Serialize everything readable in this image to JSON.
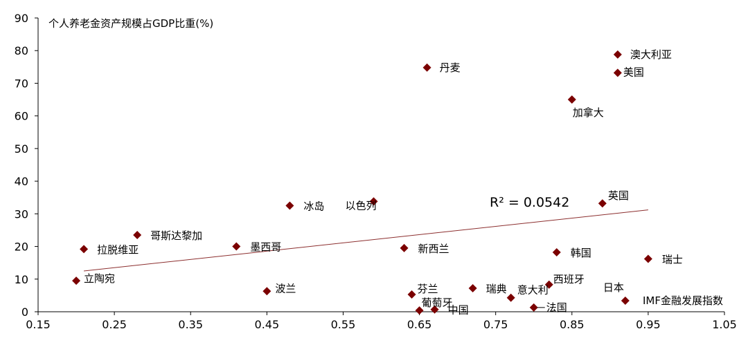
{
  "chart_data": {
    "type": "scatter",
    "title": "",
    "xlabel": "IMF金融发展指数",
    "ylabel": "个人养老金资产规模占GDP比重(%)",
    "xlim": [
      0.15,
      1.05
    ],
    "ylim": [
      0,
      90
    ],
    "x_ticks": [
      "0.15",
      "0.25",
      "0.35",
      "0.45",
      "0.55",
      "0.65",
      "0.75",
      "0.85",
      "0.95",
      "1.05"
    ],
    "y_ticks": [
      "0",
      "10",
      "20",
      "30",
      "40",
      "50",
      "60",
      "70",
      "80",
      "90"
    ],
    "grid": false,
    "marker_color": "#7b0000",
    "trendline_color": "#8b2d2d",
    "trendline": {
      "label": "R² = 0.0542",
      "x": [
        0.21,
        0.95
      ],
      "y": [
        12.5,
        31.2
      ]
    },
    "points": [
      {
        "name": "澳大利亚",
        "x": 0.91,
        "y": 78.8
      },
      {
        "name": "美国",
        "x": 0.91,
        "y": 73.2
      },
      {
        "name": "丹麦",
        "x": 0.66,
        "y": 74.8
      },
      {
        "name": "加拿大",
        "x": 0.85,
        "y": 65.0
      },
      {
        "name": "英国",
        "x": 0.89,
        "y": 33.2
      },
      {
        "name": "以色列",
        "x": 0.59,
        "y": 33.8
      },
      {
        "name": "冰岛",
        "x": 0.48,
        "y": 32.5
      },
      {
        "name": "哥斯达黎加",
        "x": 0.28,
        "y": 23.5
      },
      {
        "name": "墨西哥",
        "x": 0.41,
        "y": 20.0
      },
      {
        "name": "拉脱维亚",
        "x": 0.21,
        "y": 19.2
      },
      {
        "name": "新西兰",
        "x": 0.63,
        "y": 19.5
      },
      {
        "name": "韩国",
        "x": 0.83,
        "y": 18.2
      },
      {
        "name": "瑞士",
        "x": 0.95,
        "y": 16.2
      },
      {
        "name": "立陶宛",
        "x": 0.2,
        "y": 9.5
      },
      {
        "name": "西班牙",
        "x": 0.82,
        "y": 8.3
      },
      {
        "name": "瑞典",
        "x": 0.72,
        "y": 7.2
      },
      {
        "name": "波兰",
        "x": 0.45,
        "y": 6.3
      },
      {
        "name": "芬兰",
        "x": 0.64,
        "y": 5.3
      },
      {
        "name": "意大利",
        "x": 0.77,
        "y": 4.3
      },
      {
        "name": "日本",
        "x": 0.92,
        "y": 3.4
      },
      {
        "name": "葡萄牙",
        "x": 0.65,
        "y": 0.4
      },
      {
        "name": "中国",
        "x": 0.67,
        "y": 0.7
      },
      {
        "name": "法国",
        "x": 0.8,
        "y": 1.3
      }
    ]
  }
}
